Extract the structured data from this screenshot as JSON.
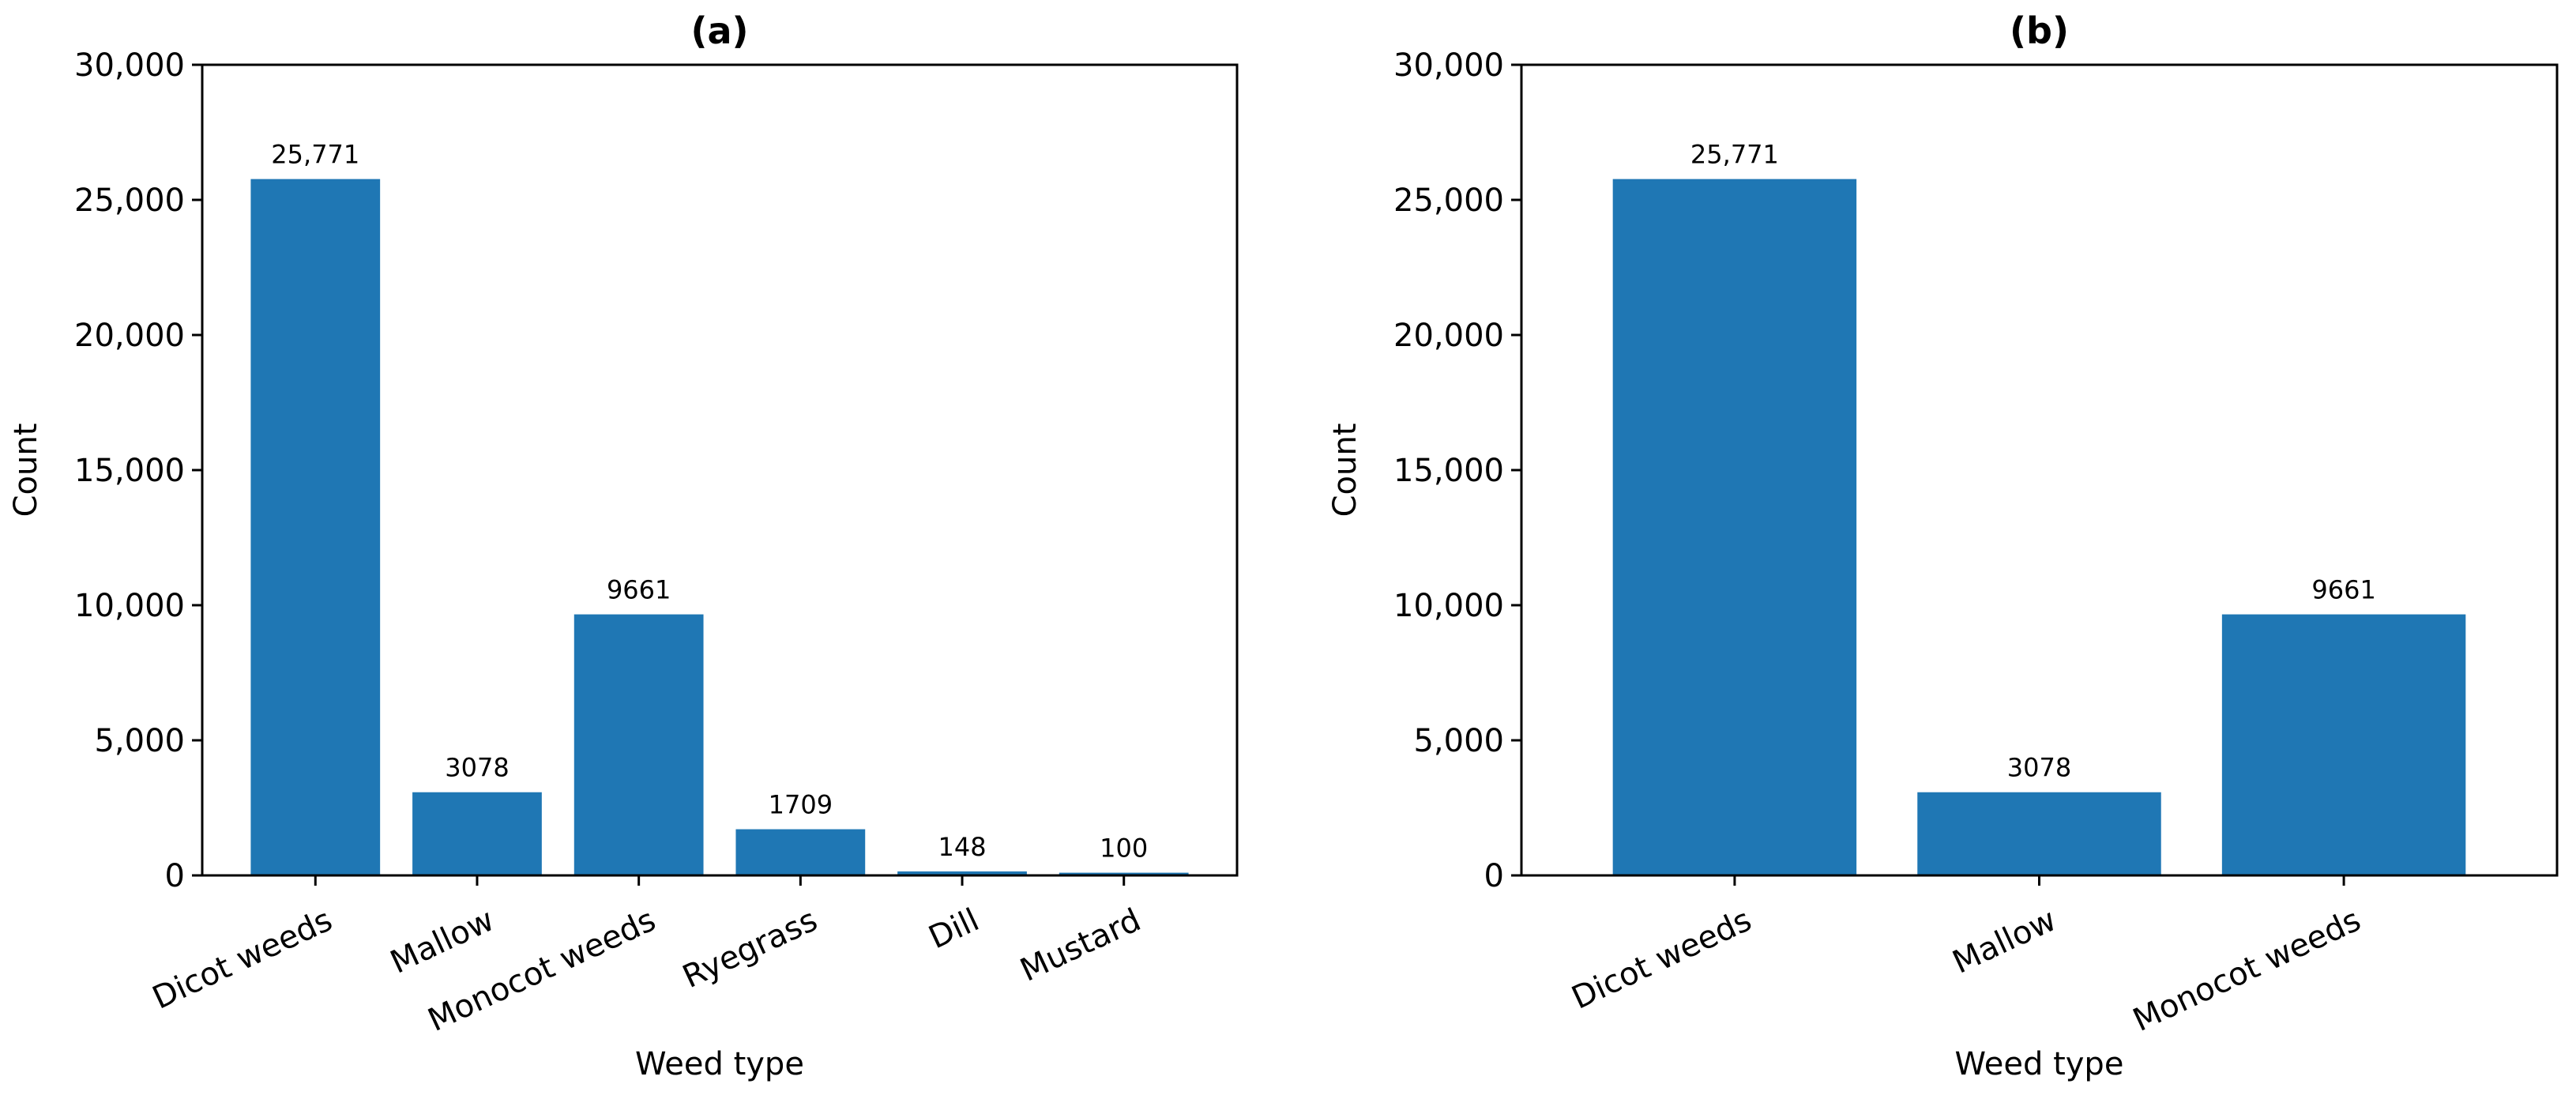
{
  "chart_data": [
    {
      "type": "bar",
      "title": "(a)",
      "xlabel": "Weed type",
      "ylabel": "Count",
      "categories": [
        "Dicot weeds",
        "Mallow",
        "Monocot weeds",
        "Ryegrass",
        "Dill",
        "Mustard"
      ],
      "values": [
        25771,
        3078,
        9661,
        1709,
        148,
        100
      ],
      "value_labels": [
        "25,771",
        "3078",
        "9661",
        "1709",
        "148",
        "100"
      ],
      "ylim": [
        0,
        30000
      ],
      "yticks": [
        0,
        5000,
        10000,
        15000,
        20000,
        25000,
        30000
      ],
      "ytick_labels": [
        "0",
        "5,000",
        "10,000",
        "15,000",
        "20,000",
        "25,000",
        "30,000"
      ],
      "bar_color": "#1f77b4",
      "grid": false
    },
    {
      "type": "bar",
      "title": "(b)",
      "xlabel": "Weed type",
      "ylabel": "Count",
      "categories": [
        "Dicot weeds",
        "Mallow",
        "Monocot weeds"
      ],
      "values": [
        25771,
        3078,
        9661
      ],
      "value_labels": [
        "25,771",
        "3078",
        "9661"
      ],
      "ylim": [
        0,
        30000
      ],
      "yticks": [
        0,
        5000,
        10000,
        15000,
        20000,
        25000,
        30000
      ],
      "ytick_labels": [
        "0",
        "5,000",
        "10,000",
        "15,000",
        "20,000",
        "25,000",
        "30,000"
      ],
      "bar_color": "#1f77b4",
      "grid": false
    }
  ]
}
